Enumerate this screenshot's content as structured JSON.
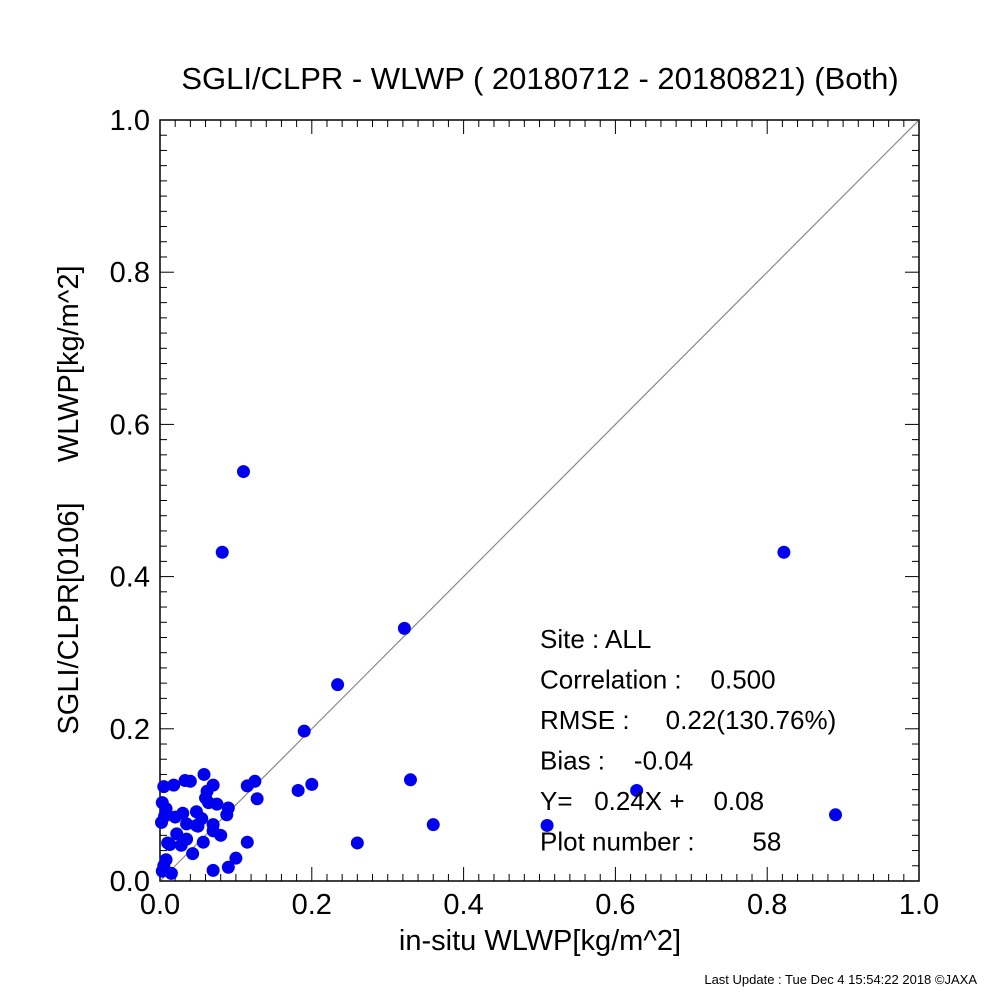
{
  "chart_data": {
    "type": "scatter",
    "title": "SGLI/CLPR - WLWP ( 20180712 - 20180821) (Both)",
    "xlabel": "in-situ WLWP[kg/m^2]",
    "ylabel": "SGLI/CLPR[0106]     WLWP[kg/m^2]",
    "xlim": [
      0.0,
      1.0
    ],
    "ylim": [
      0.0,
      1.0
    ],
    "x_ticks": [
      "0.0",
      "0.2",
      "0.4",
      "0.6",
      "0.8",
      "1.0"
    ],
    "y_ticks": [
      "0.0",
      "0.2",
      "0.4",
      "0.6",
      "0.8",
      "1.0"
    ],
    "grid": false,
    "reference_line": "1:1",
    "point_color": "#0000ee",
    "points": [
      {
        "x": 0.11,
        "y": 0.538
      },
      {
        "x": 0.082,
        "y": 0.432
      },
      {
        "x": 0.822,
        "y": 0.432
      },
      {
        "x": 0.322,
        "y": 0.332
      },
      {
        "x": 0.234,
        "y": 0.258
      },
      {
        "x": 0.19,
        "y": 0.197
      },
      {
        "x": 0.2,
        "y": 0.127
      },
      {
        "x": 0.182,
        "y": 0.119
      },
      {
        "x": 0.33,
        "y": 0.133
      },
      {
        "x": 0.36,
        "y": 0.074
      },
      {
        "x": 0.26,
        "y": 0.05
      },
      {
        "x": 0.51,
        "y": 0.073
      },
      {
        "x": 0.628,
        "y": 0.119
      },
      {
        "x": 0.89,
        "y": 0.087
      },
      {
        "x": 0.125,
        "y": 0.131
      },
      {
        "x": 0.115,
        "y": 0.125
      },
      {
        "x": 0.128,
        "y": 0.108
      },
      {
        "x": 0.115,
        "y": 0.051
      },
      {
        "x": 0.1,
        "y": 0.03
      },
      {
        "x": 0.09,
        "y": 0.018
      },
      {
        "x": 0.07,
        "y": 0.014
      },
      {
        "x": 0.09,
        "y": 0.096
      },
      {
        "x": 0.088,
        "y": 0.087
      },
      {
        "x": 0.075,
        "y": 0.101
      },
      {
        "x": 0.07,
        "y": 0.126
      },
      {
        "x": 0.058,
        "y": 0.14
      },
      {
        "x": 0.062,
        "y": 0.118
      },
      {
        "x": 0.064,
        "y": 0.103
      },
      {
        "x": 0.048,
        "y": 0.091
      },
      {
        "x": 0.05,
        "y": 0.072
      },
      {
        "x": 0.07,
        "y": 0.074
      },
      {
        "x": 0.07,
        "y": 0.066
      },
      {
        "x": 0.057,
        "y": 0.051
      },
      {
        "x": 0.04,
        "y": 0.131
      },
      {
        "x": 0.033,
        "y": 0.132
      },
      {
        "x": 0.018,
        "y": 0.126
      },
      {
        "x": 0.005,
        "y": 0.124
      },
      {
        "x": 0.003,
        "y": 0.103
      },
      {
        "x": 0.008,
        "y": 0.095
      },
      {
        "x": 0.03,
        "y": 0.089
      },
      {
        "x": 0.02,
        "y": 0.084
      },
      {
        "x": 0.006,
        "y": 0.085
      },
      {
        "x": 0.002,
        "y": 0.077
      },
      {
        "x": 0.035,
        "y": 0.075
      },
      {
        "x": 0.048,
        "y": 0.073
      },
      {
        "x": 0.028,
        "y": 0.047
      },
      {
        "x": 0.013,
        "y": 0.048
      },
      {
        "x": 0.043,
        "y": 0.036
      },
      {
        "x": 0.008,
        "y": 0.028
      },
      {
        "x": 0.005,
        "y": 0.02
      },
      {
        "x": 0.015,
        "y": 0.01
      },
      {
        "x": 0.003,
        "y": 0.013
      },
      {
        "x": 0.06,
        "y": 0.109
      },
      {
        "x": 0.01,
        "y": 0.05
      },
      {
        "x": 0.035,
        "y": 0.055
      },
      {
        "x": 0.022,
        "y": 0.062
      },
      {
        "x": 0.055,
        "y": 0.082
      },
      {
        "x": 0.08,
        "y": 0.06
      }
    ],
    "stats": [
      {
        "label": "Site : ALL"
      },
      {
        "label": "Correlation :    0.500"
      },
      {
        "label": "RMSE :     0.22(130.76%)"
      },
      {
        "label": "Bias :    -0.04"
      },
      {
        "label": "Y=   0.24X +    0.08"
      },
      {
        "label": "Plot number :        58"
      }
    ]
  },
  "footer": "Last Update : Tue Dec  4 15:54:22 2018  ©JAXA"
}
